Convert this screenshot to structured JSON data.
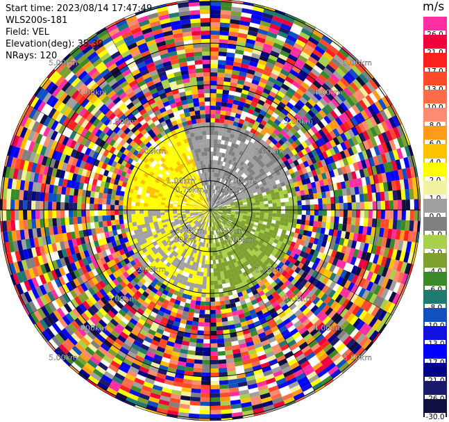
{
  "info": {
    "start_time": "Start time: 2023/08/14 17:47:49",
    "instrument": "WLS200s-181",
    "field": "Field: VEL",
    "elevation": "Elevation(deg): 35.30",
    "nrays": "NRays: 120"
  },
  "colorbar": {
    "unit": "m/s",
    "labels": [
      "26.0",
      "21.0",
      "17.0",
      "13.0",
      "10.0",
      "8.0",
      "6.0",
      "4.0",
      "2.0",
      "1.0",
      "0.0",
      "-1.0",
      "-2.0",
      "-4.0",
      "-6.0",
      "-8.0",
      "-10.0",
      "-13.0",
      "-17.0",
      "-21.0",
      "-26.0",
      "-30.0"
    ],
    "colors": [
      "#ff2fa3",
      "#f0003c",
      "#ff2020",
      "#ff4a2a",
      "#ff6c4a",
      "#ff8c70",
      "#ff9a1a",
      "#ffc200",
      "#ffff00",
      "#f2f2a0",
      "#a0a0a0",
      "#808080",
      "#a8d04a",
      "#7f9f2f",
      "#3a8a2a",
      "#207a70",
      "#1050c0",
      "#1010e0",
      "#0000ff",
      "#00008a",
      "#1a1a6a",
      "#101040"
    ]
  },
  "chart_data": {
    "type": "heatmap",
    "title": "",
    "field": "VEL",
    "unit": "m/s",
    "nrays": 120,
    "range_rings_km": [
      0.7,
      1.0,
      2.0,
      3.0,
      4.0,
      5.0
    ],
    "ring_labels": [
      "0.70km",
      "1.00km",
      "2.00km",
      "3.00km",
      "4.00km",
      "5.00km"
    ],
    "colorbar_min": -30.0,
    "colorbar_max": 26.0,
    "sectors": [
      {
        "direction": "west-north",
        "dominant_velocity": 2.0
      },
      {
        "direction": "north-east",
        "dominant_velocity": 0.0
      },
      {
        "direction": "east-south",
        "dominant_velocity": -4.0
      },
      {
        "direction": "south-west",
        "dominant_velocity": 0.0
      }
    ]
  }
}
